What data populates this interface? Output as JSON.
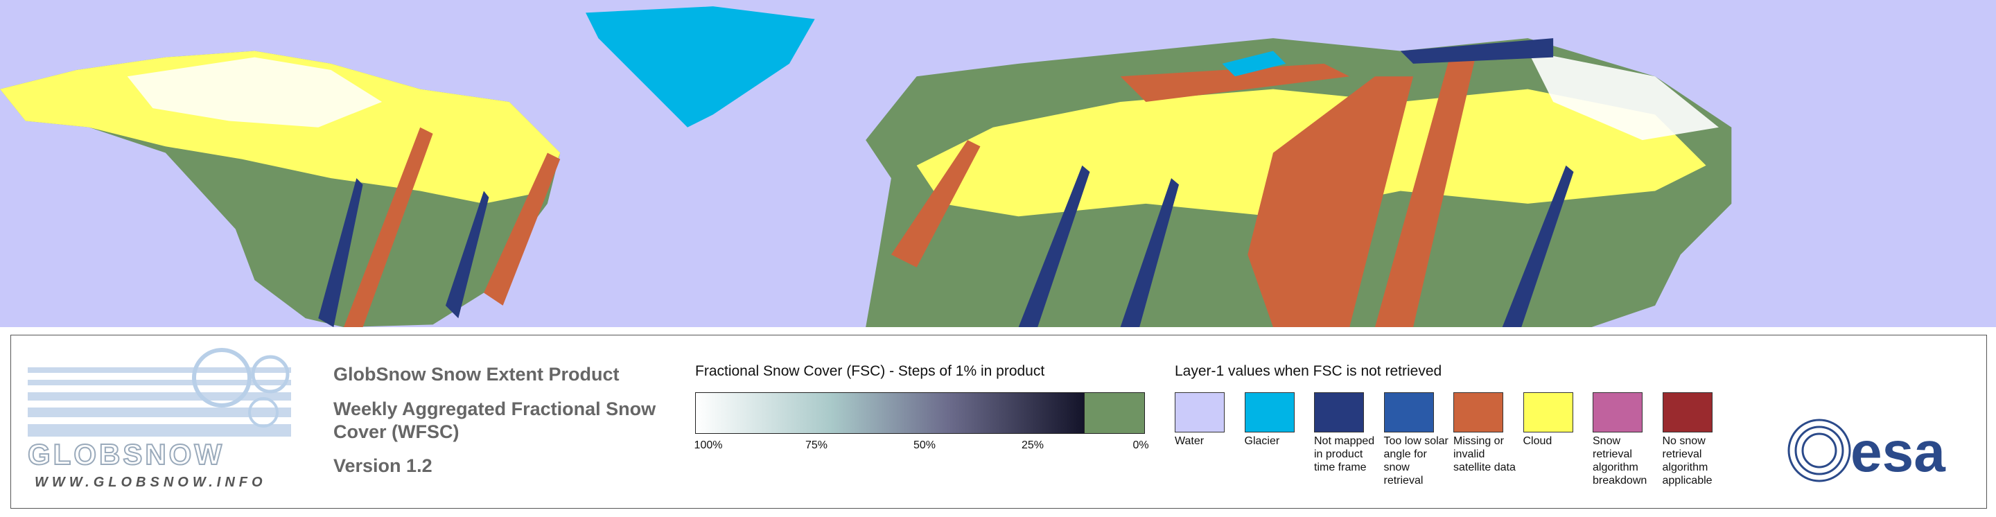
{
  "logo": {
    "name": "GLOBSNOW",
    "url": "WWW.GLOBSNOW.INFO"
  },
  "header": {
    "title": "GlobSnow Snow Extent Product",
    "subtitle": "Weekly Aggregated Fractional Snow Cover (WFSC)",
    "version": "Version 1.2"
  },
  "fsc_legend": {
    "title": "Fractional Snow Cover (FSC) - Steps of 1% in product",
    "ticks": [
      "100%",
      "75%",
      "50%",
      "25%",
      "0%"
    ]
  },
  "layer1_legend": {
    "title": "Layer-1 values when FSC is not retrieved",
    "items": [
      {
        "label": "Water",
        "color": "#cbcbfa"
      },
      {
        "label": "Glacier",
        "color": "#00b4e6"
      },
      {
        "label": "Not mapped in product time frame",
        "color": "#263a7e"
      },
      {
        "label": "Too low solar angle for snow retrieval",
        "color": "#2a5aa8"
      },
      {
        "label": "Missing or invalid satellite data",
        "color": "#cc643c"
      },
      {
        "label": "Cloud",
        "color": "#ffff5a"
      },
      {
        "label": "Snow retrieval algorithm breakdown",
        "color": "#c0629e"
      },
      {
        "label": "No snow retrieval algorithm applicable",
        "color": "#9a2a2e"
      }
    ]
  },
  "esa_logo": "esa"
}
